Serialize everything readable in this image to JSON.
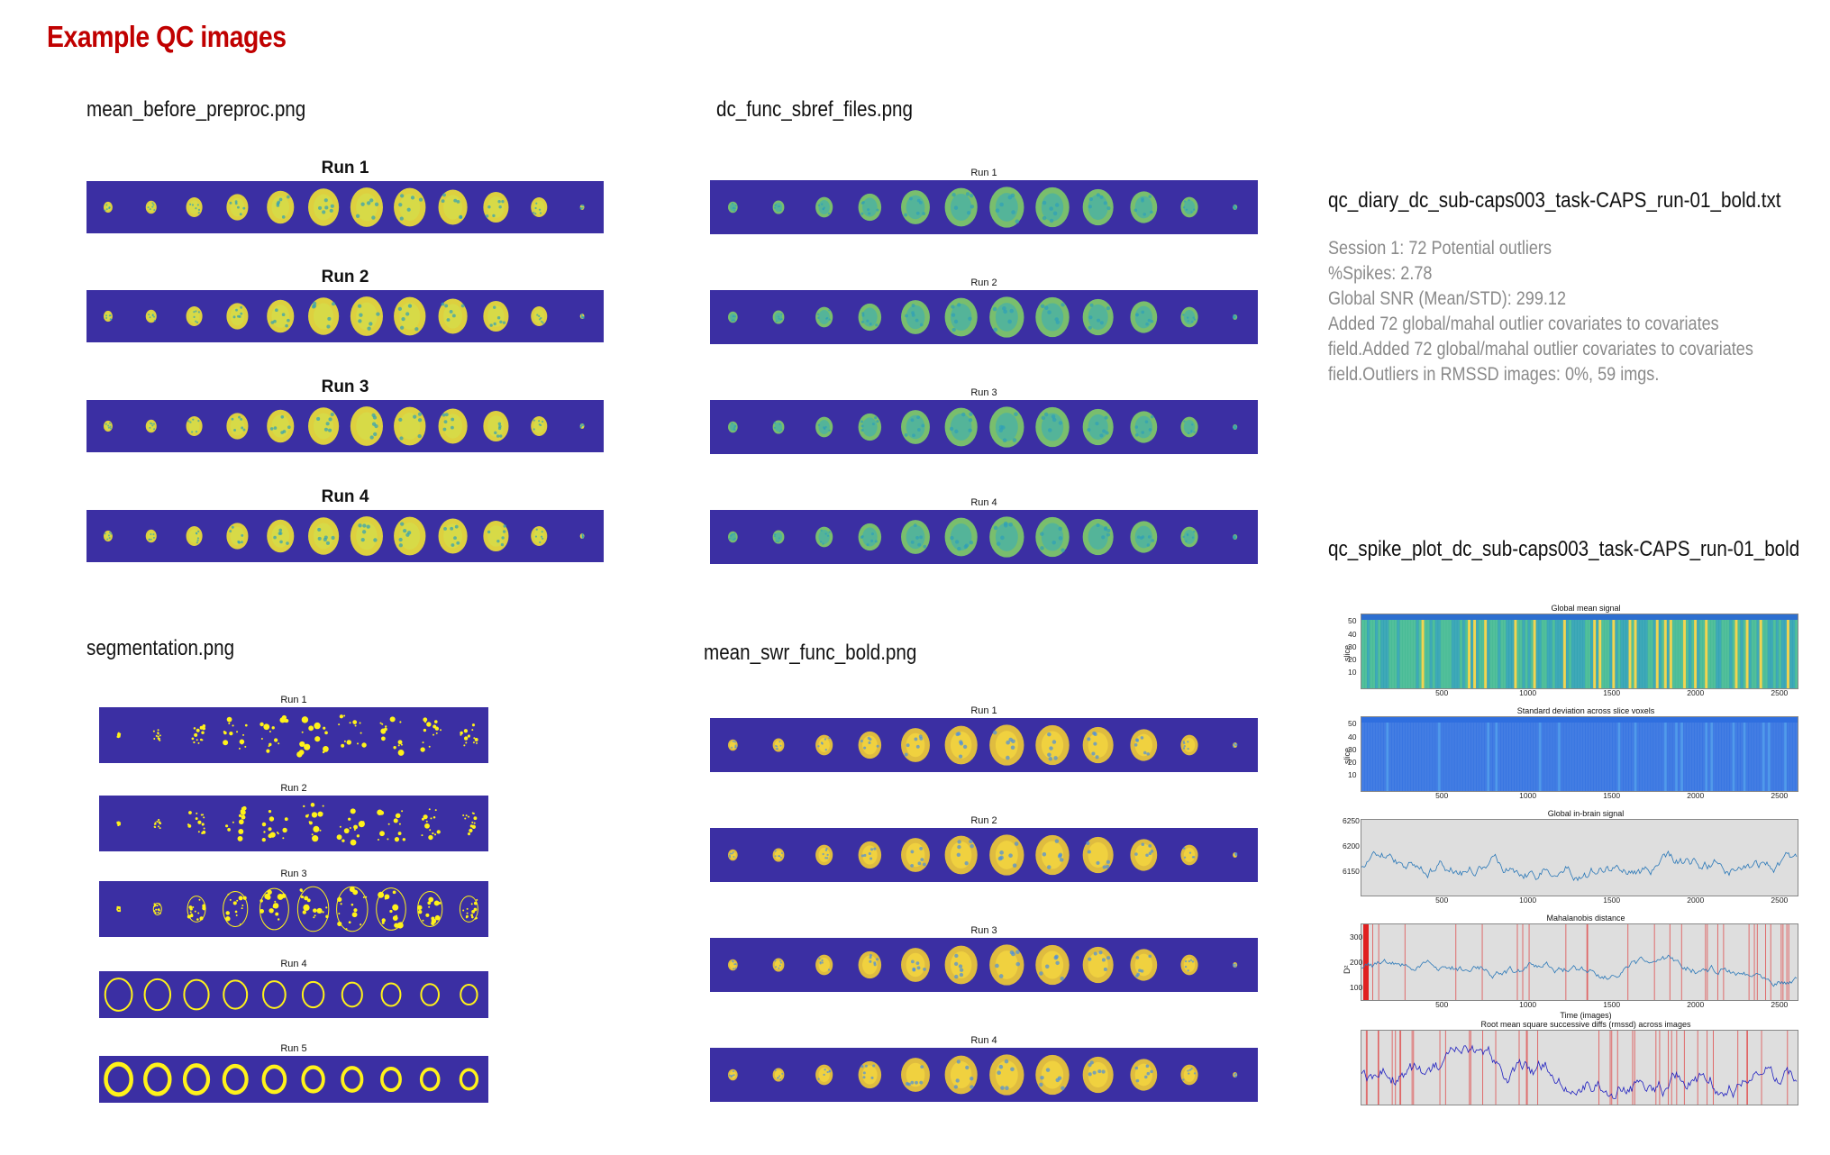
{
  "page_title": "Example QC images",
  "sections": {
    "mean_before": "mean_before_preproc.png",
    "dc_func": "dc_func_sbref_files.png",
    "segmentation": "segmentation.png",
    "mean_swr": "mean_swr_func_bold.png",
    "qc_diary": "qc_diary_dc_sub-caps003_task-CAPS_run-01_bold.txt",
    "qc_spike": "qc_spike_plot_dc_sub-caps003_task-CAPS_run-01_bold"
  },
  "run_labels": [
    "Run 1",
    "Run 2",
    "Run 3",
    "Run 4",
    "Run 5"
  ],
  "diary_lines": [
    "Session   1:  72 Potential outliers",
    "%Spikes: 2.78",
    "Global SNR (Mean/STD): 299.12",
    "Added  72 global/mahal outlier covariates to covariates",
    "field.Added  72 global/mahal outlier covariates to covariates",
    "field.Outliers in RMSSD images:   0%, 59 imgs."
  ],
  "spike_plot": {
    "panels": [
      {
        "title": "Global mean signal",
        "ylabel": "slice",
        "yticks": [
          "50",
          "40",
          "30",
          "20",
          "10"
        ]
      },
      {
        "title": "Standard deviation across slice voxels",
        "ylabel": "slice",
        "yticks": [
          "50",
          "40",
          "30",
          "20",
          "10"
        ]
      },
      {
        "title": "Global in-brain signal",
        "ylabel": "",
        "yticks": [
          "6250",
          "6200",
          "6150"
        ]
      },
      {
        "title": "Mahalanobis distance",
        "ylabel": "D²",
        "yticks": [
          "300",
          "200",
          "100"
        ]
      },
      {
        "title": "Root mean square successive diffs (rmssd) across images",
        "ylabel": "",
        "yticks": []
      }
    ],
    "xticks": [
      "500",
      "1000",
      "1500",
      "2000",
      "2500"
    ],
    "xlabel": "Time (images)"
  },
  "colors": {
    "title_red": "#c00000",
    "strip_bg": "#3b2fa3",
    "brain_yellow": "#e6d93a",
    "brain_green": "#7cc66a",
    "heat_blue": "#2f6fe0",
    "trace_blue": "#2a78b8",
    "outlier_red": "#e02020",
    "rmssd_blue": "#2020c0"
  }
}
